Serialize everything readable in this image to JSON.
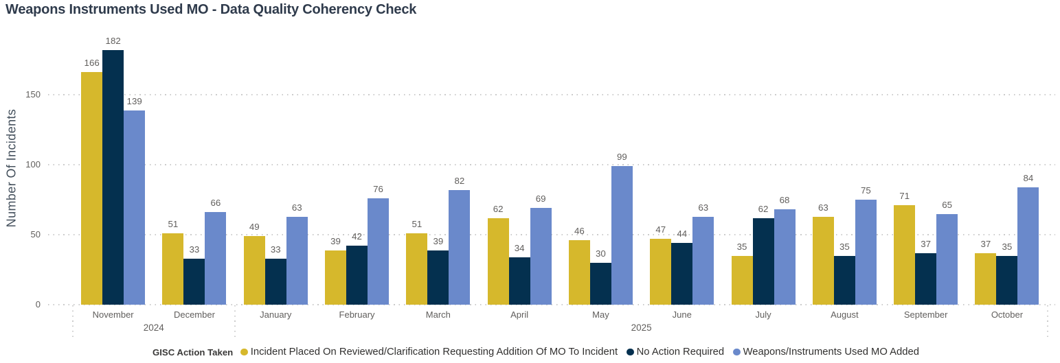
{
  "title": "Weapons Instruments Used MO - Data Quality Coherency Check",
  "chart_data": {
    "type": "bar",
    "title": "Weapons Instruments Used MO - Data Quality Coherency Check",
    "xlabel": "",
    "ylabel": "Number Of Incidents",
    "ylim": [
      0,
      195
    ],
    "yticks": [
      0,
      50,
      100,
      150
    ],
    "grid": "horizontal-dotted",
    "legend_position": "bottom-center",
    "legend_title": "GISC Action Taken",
    "categories": [
      "November",
      "December",
      "January",
      "February",
      "March",
      "April",
      "May",
      "June",
      "July",
      "August",
      "September",
      "October"
    ],
    "year_groups": [
      {
        "label": "2024",
        "start": 0,
        "count": 2
      },
      {
        "label": "2025",
        "start": 2,
        "count": 10
      }
    ],
    "series": [
      {
        "name": "Incident Placed On Reviewed/Clarification Requesting Addition Of MO To Incident",
        "color": "#d6b82c",
        "values": [
          166,
          51,
          49,
          39,
          51,
          62,
          46,
          47,
          35,
          63,
          71,
          37
        ]
      },
      {
        "name": "No Action Required",
        "color": "#04304f",
        "values": [
          182,
          33,
          33,
          42,
          39,
          34,
          30,
          44,
          62,
          35,
          37,
          35
        ]
      },
      {
        "name": "Weapons/Instruments Used MO Added",
        "color": "#6a89cb",
        "values": [
          139,
          66,
          63,
          76,
          82,
          69,
          99,
          63,
          68,
          75,
          65,
          84
        ]
      }
    ]
  },
  "colors": {
    "background": "#ffffff",
    "title_text": "#2f3b4c",
    "axis_title_text": "#44505c",
    "tick_label_text": "#605e5c",
    "data_label_text": "#605e5c",
    "legend_text": "#31302f",
    "gridline": "#cbcbcb"
  }
}
